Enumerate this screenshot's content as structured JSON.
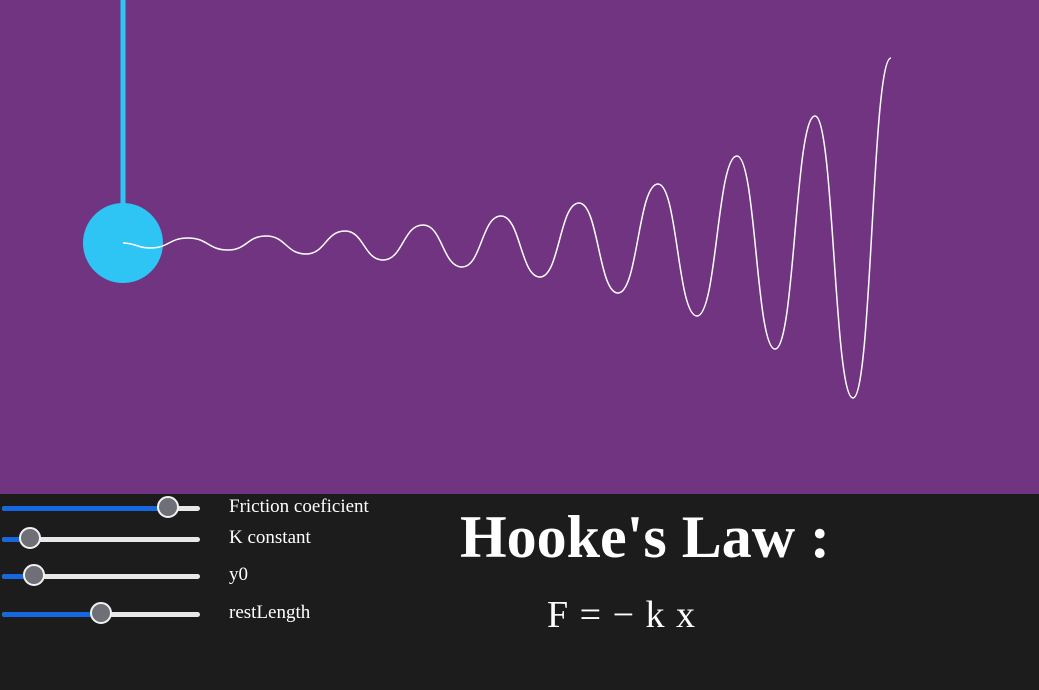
{
  "colors": {
    "canvas_bg": "#703481",
    "panel_bg": "#1c1c1c",
    "bob": "#2ec5f5",
    "rod": "#2ec5f5",
    "trace": "#ffffff",
    "slider_fill": "#1668e0",
    "slider_track": "#e8e8e8",
    "slider_thumb": "#6f6f77",
    "text": "#ffffff"
  },
  "controls": {
    "sliders": [
      {
        "label": "Friction coeficient",
        "value_fraction": 0.84
      },
      {
        "label": "K constant",
        "value_fraction": 0.14
      },
      {
        "label": "y0",
        "value_fraction": 0.16
      },
      {
        "label": "restLength",
        "value_fraction": 0.5
      }
    ]
  },
  "info": {
    "title": "Hooke's Law :",
    "formula": "F = − k x"
  },
  "simulation": {
    "icons": [
      "bob-circle",
      "spring-rod",
      "position-trace"
    ]
  }
}
